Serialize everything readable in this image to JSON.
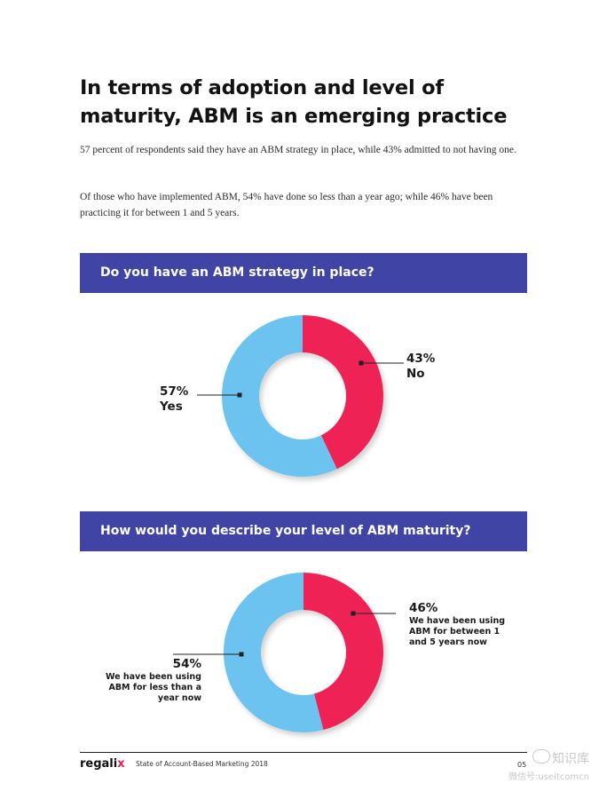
{
  "title": "In terms of adoption and level of maturity, ABM is an emerging practice",
  "paragraphs": [
    "57 percent of respondents said they have an ABM strategy in place, while 43% admitted to not having one.",
    "Of those who have implemented ABM, 54% have done so less than a year ago; while 46% have been practicing it for between 1 and 5 years."
  ],
  "colors": {
    "banner": "#4044a5",
    "pink": "#ee2255",
    "blue": "#6cc3f0"
  },
  "chart_data": [
    {
      "type": "pie",
      "title": "Do you have an ABM strategy in place?",
      "donut": true,
      "slices": [
        {
          "pct_label": "43%",
          "label": "No",
          "value": 43,
          "color": "#ee2255"
        },
        {
          "pct_label": "57%",
          "label": "Yes",
          "value": 57,
          "color": "#6cc3f0"
        }
      ]
    },
    {
      "type": "pie",
      "title": "How would you describe your level of ABM maturity?",
      "donut": true,
      "slices": [
        {
          "pct_label": "46%",
          "label": "We have been using ABM for between 1 and 5 years now",
          "value": 46,
          "color": "#ee2255"
        },
        {
          "pct_label": "54%",
          "label": "We have been using ABM for less than a year now",
          "value": 54,
          "color": "#6cc3f0"
        }
      ]
    }
  ],
  "footer": {
    "logo_main": "regali",
    "logo_accent": "x",
    "report": "State of Account-Based Marketing 2018",
    "page": "05"
  },
  "watermark": {
    "line1": "知识库",
    "line2": "微信号:useitcomcn"
  }
}
